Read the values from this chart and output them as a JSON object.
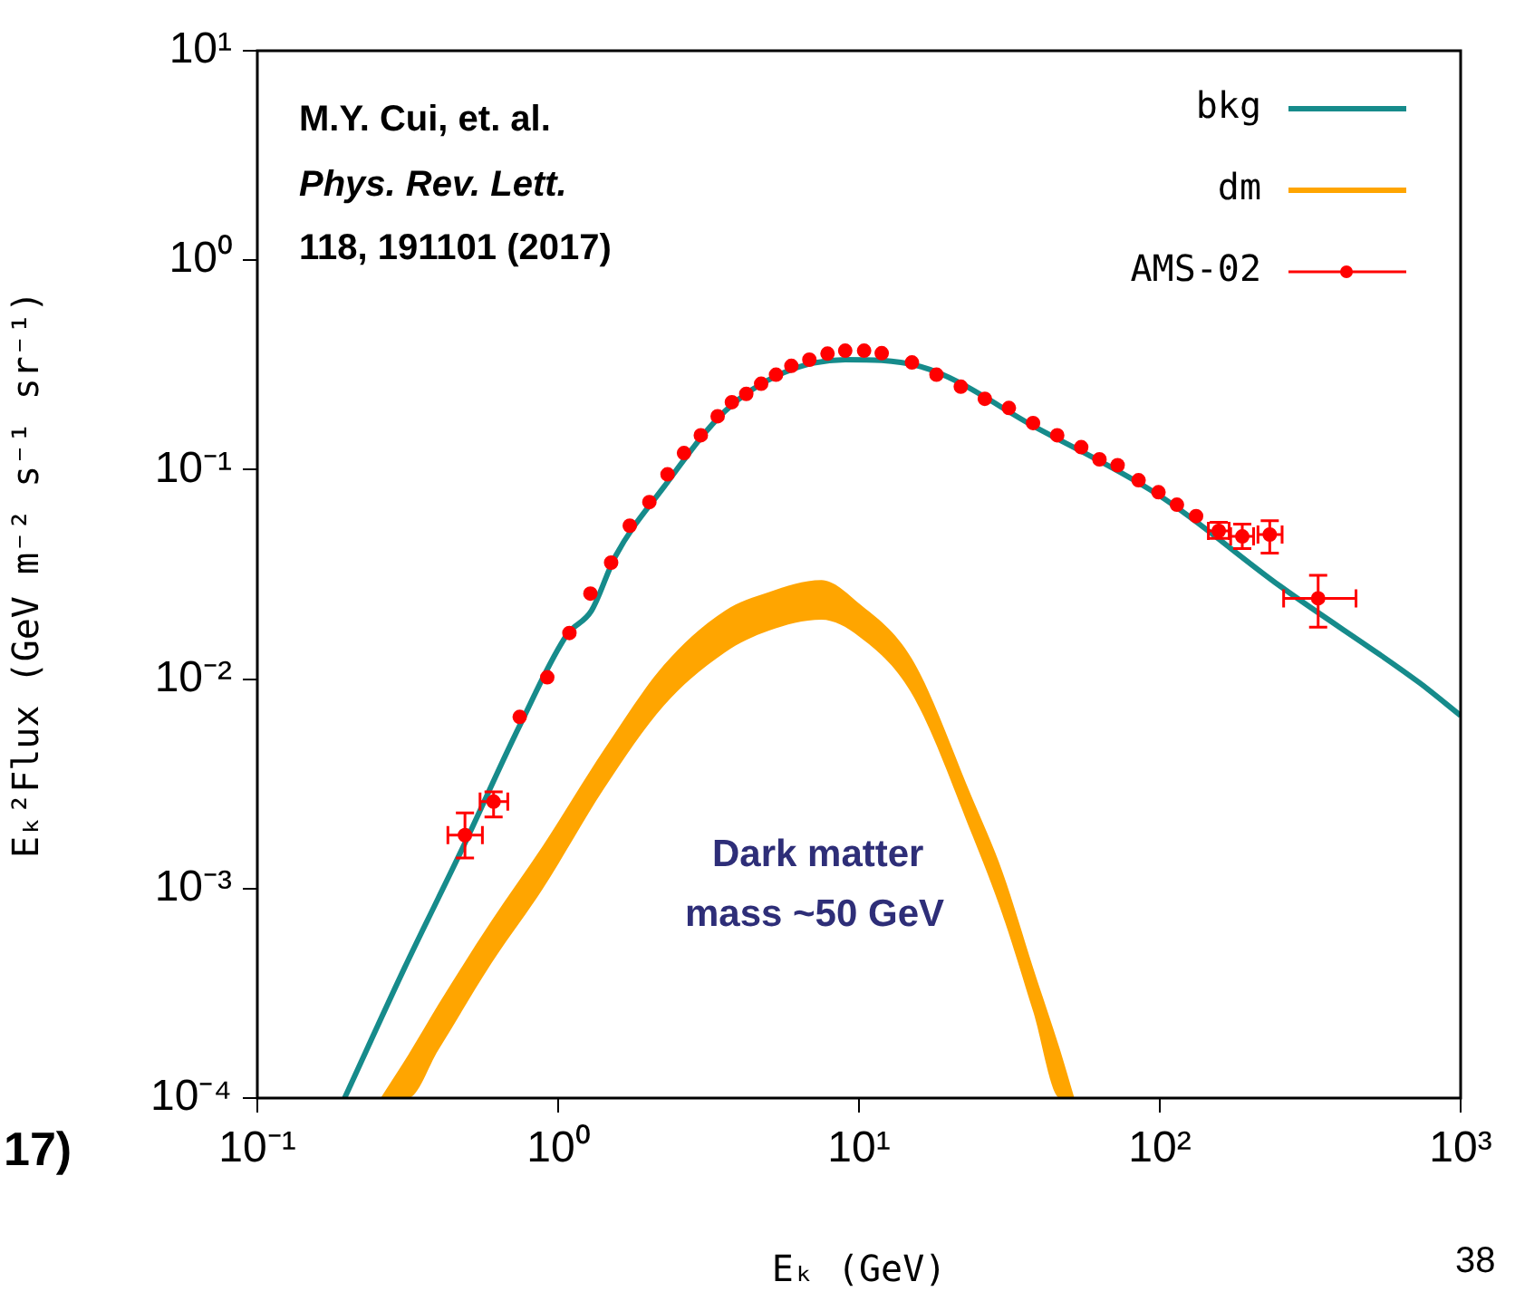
{
  "chart_data": {
    "type": "line",
    "xlabel": "Eₖ (GeV)",
    "ylabel": "Eₖ²Flux (GeV m⁻² s⁻¹ sr⁻¹)",
    "log": "xy",
    "grid": false,
    "legend": "top right",
    "xlim": [
      0.1,
      1000
    ],
    "ylim": [
      0.0001,
      10
    ],
    "xticks": [
      {
        "value": 0.1,
        "label": "10⁻¹"
      },
      {
        "value": 1,
        "label": "10⁰"
      },
      {
        "value": 10,
        "label": "10¹"
      },
      {
        "value": 100,
        "label": "10²"
      },
      {
        "value": 1000,
        "label": "10³"
      }
    ],
    "yticks": [
      {
        "value": 0.0001,
        "label": "10⁻⁴"
      },
      {
        "value": 0.001,
        "label": "10⁻³"
      },
      {
        "value": 0.01,
        "label": "10⁻²"
      },
      {
        "value": 0.1,
        "label": "10⁻¹"
      },
      {
        "value": 1,
        "label": "10⁰"
      },
      {
        "value": 10,
        "label": "10¹"
      }
    ],
    "annotations": [
      "M.Y. Cui, et. al.",
      "Phys. Rev. Lett.",
      "118, 191101 (2017)",
      "Dark matter",
      "mass ~50 GeV",
      "17)",
      "38"
    ],
    "series": [
      {
        "name": "bkg",
        "type": "line",
        "color": "#168b8b",
        "x": [
          0.195,
          0.309,
          0.485,
          0.745,
          1.07,
          1.29,
          1.55,
          2.25,
          3.58,
          5.6,
          9.0,
          15.7,
          39.4,
          100,
          252,
          730,
          1000
        ],
        "values": [
          0.0001,
          0.00042,
          0.0016,
          0.006,
          0.0163,
          0.0212,
          0.0386,
          0.083,
          0.19,
          0.29,
          0.335,
          0.313,
          0.157,
          0.075,
          0.0277,
          0.0096,
          0.0067
        ]
      },
      {
        "name": "dm",
        "type": "line",
        "color": "#ffa500",
        "x": [
          0.257,
          0.317,
          0.4,
          0.6,
          0.89,
          1.42,
          2.25,
          3.58,
          5,
          7.5,
          10,
          15,
          23.8,
          30,
          37.9,
          46.6,
          52
        ],
        "values": [
          null,
          null,
          null,
          null,
          null,
          null,
          null,
          null,
          null,
          null,
          null,
          null,
          null,
          null,
          null,
          null,
          null
        ],
        "lower": [
          0.0001,
          0.0001,
          0.00017,
          0.00044,
          0.001,
          0.003,
          0.0075,
          0.0134,
          0.017,
          0.0192,
          0.016,
          0.0085,
          0.0018,
          0.00075,
          0.00026,
          0.0001,
          0.0001
        ],
        "upper": [
          0.0001,
          0.00016,
          0.00028,
          0.0007,
          0.0016,
          0.0046,
          0.0117,
          0.0212,
          0.026,
          0.0297,
          0.023,
          0.0125,
          0.0027,
          0.0012,
          0.00042,
          0.00017,
          0.0001
        ]
      },
      {
        "name": "AMS-02",
        "type": "scatter",
        "color": "#ff0000",
        "marker": "circle",
        "x": [
          0.49,
          0.61,
          0.745,
          0.92,
          1.09,
          1.28,
          1.5,
          1.73,
          2.01,
          2.31,
          2.62,
          2.98,
          3.39,
          3.78,
          4.22,
          4.73,
          5.3,
          5.96,
          6.84,
          7.86,
          9.0,
          10.4,
          11.9,
          15,
          18.1,
          21.8,
          26.2,
          31.5,
          37.9,
          45.6,
          54.8,
          63,
          72.4,
          85,
          99,
          114,
          132,
          157,
          188,
          232,
          336
        ],
        "values": [
          0.0018,
          0.0026,
          0.0066,
          0.0102,
          0.0166,
          0.0256,
          0.036,
          0.054,
          0.07,
          0.095,
          0.12,
          0.146,
          0.18,
          0.21,
          0.23,
          0.257,
          0.284,
          0.313,
          0.335,
          0.358,
          0.37,
          0.37,
          0.36,
          0.325,
          0.284,
          0.249,
          0.218,
          0.197,
          0.167,
          0.146,
          0.128,
          0.112,
          0.105,
          0.089,
          0.078,
          0.068,
          0.06,
          0.051,
          0.048,
          0.049,
          0.0243
        ],
        "errors": [
          [
            0.0014,
            0.0023
          ],
          [
            0.0022,
            0.0029
          ],
          null,
          null,
          null,
          null,
          null,
          null,
          null,
          null,
          null,
          null,
          null,
          null,
          null,
          null,
          null,
          null,
          null,
          null,
          null,
          null,
          null,
          null,
          null,
          null,
          null,
          null,
          null,
          null,
          null,
          null,
          null,
          null,
          null,
          null,
          null,
          [
            0.047,
            0.056
          ],
          [
            0.042,
            0.055
          ],
          [
            0.04,
            0.057
          ],
          [
            0.0177,
            0.0313
          ]
        ],
        "xerrors": [
          [
            0.43,
            0.56
          ],
          [
            0.55,
            0.68
          ],
          null,
          null,
          null,
          null,
          null,
          null,
          null,
          null,
          null,
          null,
          null,
          null,
          null,
          null,
          null,
          null,
          null,
          null,
          null,
          null,
          null,
          null,
          null,
          null,
          null,
          null,
          null,
          null,
          null,
          null,
          null,
          null,
          null,
          null,
          null,
          [
            145,
            170
          ],
          [
            172,
            205
          ],
          [
            212,
            255
          ],
          [
            258,
            449
          ]
        ]
      }
    ]
  }
}
